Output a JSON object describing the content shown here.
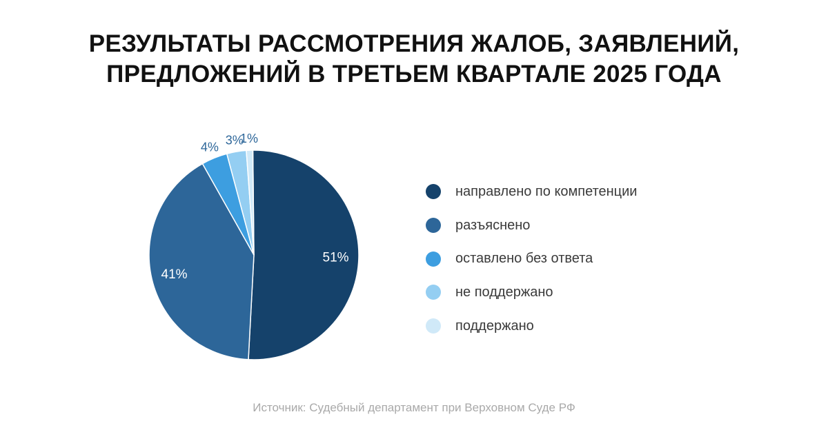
{
  "title": {
    "line1": "РЕЗУЛЬТАТЫ РАССМОТРЕНИЯ ЖАЛОБ, ЗАЯВЛЕНИЙ,",
    "line2": "ПРЕДЛОЖЕНИЙ В ТРЕТЬЕМ КВАРТАЛЕ 2025 ГОДА"
  },
  "source": "Источник: Судебный департамент при Верховном Суде РФ",
  "chart_data": {
    "type": "pie",
    "title": "РЕЗУЛЬТАТЫ РАССМОТРЕНИЯ ЖАЛОБ, ЗАЯВЛЕНИЙ, ПРЕДЛОЖЕНИЙ В ТРЕТЬЕМ КВАРТАЛЕ 2025 ГОДА",
    "legend_position": "right",
    "slices": [
      {
        "label": "направлено по компетенции",
        "value": 51,
        "value_label": "51%",
        "color": "#15426b",
        "label_color": "#ffffff"
      },
      {
        "label": "разъяснено",
        "value": 41,
        "value_label": "41%",
        "color": "#2d6699",
        "label_color": "#ffffff"
      },
      {
        "label": "оставлено без ответа",
        "value": 4,
        "value_label": "4%",
        "color": "#3d9ee0",
        "label_color": "#2d6699"
      },
      {
        "label": "не поддержано",
        "value": 3,
        "value_label": "3%",
        "color": "#94cef2",
        "label_color": "#2d6699"
      },
      {
        "label": "поддержано",
        "value": 1,
        "value_label": "1%",
        "color": "#d0e9f8",
        "label_color": "#2d6699"
      }
    ]
  }
}
